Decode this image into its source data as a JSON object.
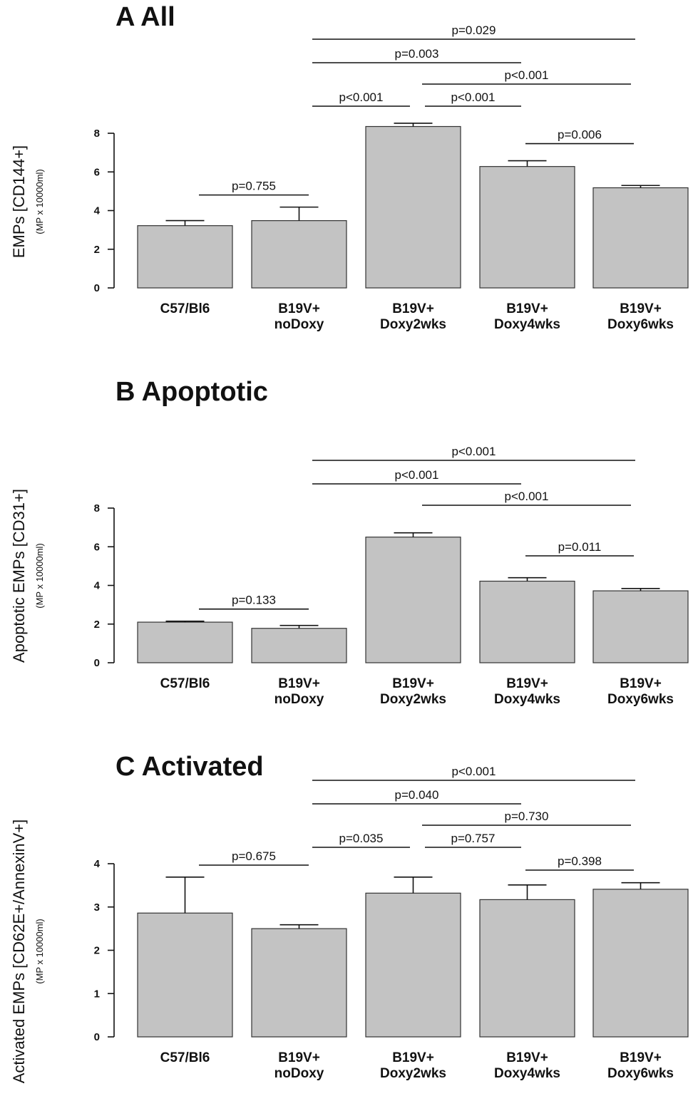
{
  "chart_data": [
    {
      "type": "bar",
      "title": "A All",
      "ylabel": "EMPs [CD144+]",
      "ylabel_sub": "(MP x 10000ml)",
      "ylim": [
        0,
        8
      ],
      "yticks": [
        0,
        2,
        4,
        6,
        8
      ],
      "categories": [
        [
          "C57/Bl6"
        ],
        [
          "B19V+",
          "noDoxy"
        ],
        [
          "B19V+",
          "Doxy2wks"
        ],
        [
          "B19V+",
          "Doxy4wks"
        ],
        [
          "B19V+",
          "Doxy6wks"
        ]
      ],
      "values": [
        3.22,
        3.48,
        8.35,
        6.28,
        5.18
      ],
      "error_upper": [
        3.48,
        4.18,
        8.52,
        6.58,
        5.3
      ],
      "comparisons": [
        {
          "from": 0,
          "to": 1,
          "label": "p=0.755",
          "level": 0
        },
        {
          "from": 1,
          "to": 2,
          "label": "p<0.001",
          "level": 1
        },
        {
          "from": 2,
          "to": 3,
          "label": "p<0.001",
          "level": 1
        },
        {
          "from": 3,
          "to": 4,
          "label": "p=0.006",
          "level": 0
        },
        {
          "from": 2,
          "to": 4,
          "label": "p<0.001",
          "level": 2
        },
        {
          "from": 1,
          "to": 3,
          "label": "p=0.003",
          "level": 3
        },
        {
          "from": 1,
          "to": 4,
          "label": "p=0.029",
          "level": 4
        }
      ]
    },
    {
      "type": "bar",
      "title": "B Apoptotic",
      "ylabel": "Apoptotic EMPs [CD31+]",
      "ylabel_sub": "(MP x 10000ml)",
      "ylim": [
        0,
        8
      ],
      "yticks": [
        0,
        2,
        4,
        6,
        8
      ],
      "categories": [
        [
          "C57/Bl6"
        ],
        [
          "B19V+",
          "noDoxy"
        ],
        [
          "B19V+",
          "Doxy2wks"
        ],
        [
          "B19V+",
          "Doxy4wks"
        ],
        [
          "B19V+",
          "Doxy6wks"
        ]
      ],
      "values": [
        2.1,
        1.78,
        6.5,
        4.22,
        3.72
      ],
      "error_upper": [
        2.15,
        1.93,
        6.72,
        4.4,
        3.84
      ],
      "comparisons": [
        {
          "from": 0,
          "to": 1,
          "label": "p=0.133",
          "level": 0
        },
        {
          "from": 3,
          "to": 4,
          "label": "p=0.011",
          "level": 0
        },
        {
          "from": 2,
          "to": 4,
          "label": "p<0.001",
          "level": 2
        },
        {
          "from": 1,
          "to": 3,
          "label": "p<0.001",
          "level": 3
        },
        {
          "from": 1,
          "to": 4,
          "label": "p<0.001",
          "level": 4
        }
      ]
    },
    {
      "type": "bar",
      "title": "C Activated",
      "ylabel": "Activated EMPs [CD62E+/AnnexinV+]",
      "ylabel_sub": "(MP x 10000ml)",
      "ylim": [
        0,
        4
      ],
      "yticks": [
        0,
        1,
        2,
        3,
        4
      ],
      "categories": [
        [
          "C57/Bl6"
        ],
        [
          "B19V+",
          "noDoxy"
        ],
        [
          "B19V+",
          "Doxy2wks"
        ],
        [
          "B19V+",
          "Doxy4wks"
        ],
        [
          "B19V+",
          "Doxy6wks"
        ]
      ],
      "values": [
        2.86,
        2.5,
        3.32,
        3.17,
        3.41
      ],
      "error_upper": [
        3.69,
        2.59,
        3.69,
        3.51,
        3.56
      ],
      "comparisons": [
        {
          "from": 0,
          "to": 1,
          "label": "p=0.675",
          "level": 0
        },
        {
          "from": 1,
          "to": 2,
          "label": "p=0.035",
          "level": 1
        },
        {
          "from": 2,
          "to": 3,
          "label": "p=0.757",
          "level": 1
        },
        {
          "from": 3,
          "to": 4,
          "label": "p=0.398",
          "level": 0
        },
        {
          "from": 2,
          "to": 4,
          "label": "p=0.730",
          "level": 2
        },
        {
          "from": 1,
          "to": 3,
          "label": "p=0.040",
          "level": 3
        },
        {
          "from": 1,
          "to": 4,
          "label": "p<0.001",
          "level": 4
        }
      ]
    }
  ]
}
